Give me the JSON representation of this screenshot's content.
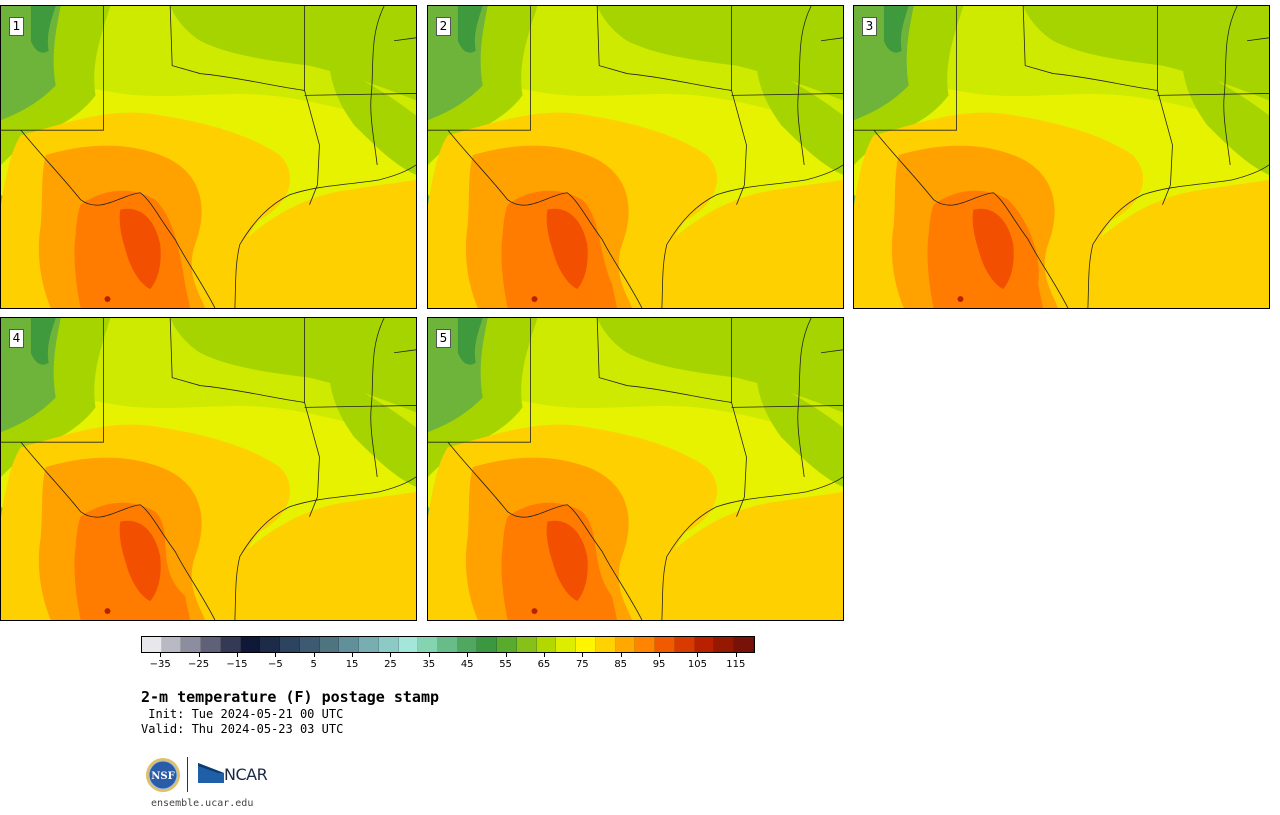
{
  "panels": [
    {
      "label": "1",
      "hot": 1.0
    },
    {
      "label": "2",
      "hot": 0.95
    },
    {
      "label": "3",
      "hot": 1.05
    },
    {
      "label": "4",
      "hot": 0.85
    },
    {
      "label": "5",
      "hot": 0.9
    }
  ],
  "colorbar": {
    "colors": [
      "#e8e8ec",
      "#b9b9c4",
      "#8c8d9e",
      "#5e6178",
      "#343a55",
      "#10183a",
      "#1c2b48",
      "#2d4461",
      "#3c5a72",
      "#4e7480",
      "#62909a",
      "#78aeb2",
      "#8ccac6",
      "#a4e6da",
      "#84d4b2",
      "#68bc88",
      "#50a860",
      "#3c9840",
      "#58ab2c",
      "#86c018",
      "#b2d800",
      "#dced00",
      "#fff500",
      "#ffd200",
      "#ffa800",
      "#ff8400",
      "#f25a00",
      "#d83a00",
      "#b82000",
      "#961800",
      "#781208"
    ],
    "tick_labels": [
      "−35",
      "−25",
      "−15",
      "−5",
      "5",
      "15",
      "25",
      "35",
      "45",
      "55",
      "65",
      "75",
      "85",
      "95",
      "105",
      "115"
    ],
    "range": [
      -40,
      120
    ]
  },
  "title": "2-m temperature (F) postage stamp",
  "init": " Init: Tue 2024-05-21 00 UTC",
  "valid": "Valid: Thu 2024-05-23 03 UTC",
  "logos": {
    "nsf": "NSF",
    "ncar": "NCAR"
  },
  "site": "ensemble.ucar.edu"
}
